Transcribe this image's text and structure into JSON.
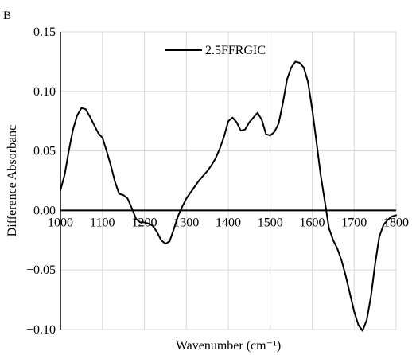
{
  "panel_label": "B",
  "chart_data": {
    "type": "line",
    "title": "",
    "panel_label": "B",
    "xlabel": "Wavenumber (cm⁻¹)",
    "ylabel": "Difference Absorbanc",
    "xlim": [
      1000,
      1800
    ],
    "ylim": [
      -0.1,
      0.15
    ],
    "x_ticks": [
      1000,
      1100,
      1200,
      1300,
      1400,
      1500,
      1600,
      1700,
      1800
    ],
    "x_tick_labels": [
      "1000",
      "1100",
      "1200",
      "1300",
      "1400",
      "1500",
      "1600",
      "1700",
      "1800"
    ],
    "y_ticks": [
      -0.1,
      -0.05,
      0.0,
      0.05,
      0.1,
      0.15
    ],
    "y_tick_labels": [
      "−0.10",
      "−0.05",
      "0.00",
      "0.05",
      "0.10",
      "0.15"
    ],
    "grid": true,
    "legend_position": "top-center",
    "colors": {
      "line": "#000000",
      "grid": "#d9d9d9"
    },
    "series": [
      {
        "name": "2.5FFRGIC",
        "x": [
          1000,
          1010,
          1020,
          1030,
          1040,
          1050,
          1060,
          1070,
          1080,
          1090,
          1100,
          1110,
          1120,
          1130,
          1140,
          1150,
          1160,
          1170,
          1180,
          1190,
          1200,
          1210,
          1220,
          1230,
          1240,
          1250,
          1260,
          1270,
          1280,
          1290,
          1300,
          1310,
          1320,
          1330,
          1340,
          1350,
          1360,
          1370,
          1380,
          1390,
          1400,
          1410,
          1420,
          1430,
          1440,
          1450,
          1460,
          1470,
          1480,
          1490,
          1500,
          1510,
          1520,
          1530,
          1540,
          1550,
          1560,
          1570,
          1580,
          1590,
          1600,
          1610,
          1620,
          1630,
          1640,
          1650,
          1660,
          1670,
          1680,
          1690,
          1700,
          1710,
          1720,
          1730,
          1740,
          1750,
          1760,
          1770,
          1780,
          1790,
          1800
        ],
        "y": [
          0.017,
          0.03,
          0.05,
          0.068,
          0.08,
          0.086,
          0.085,
          0.079,
          0.072,
          0.065,
          0.061,
          0.05,
          0.038,
          0.024,
          0.014,
          0.013,
          0.01,
          0.002,
          -0.007,
          -0.01,
          -0.01,
          -0.011,
          -0.013,
          -0.018,
          -0.025,
          -0.028,
          -0.026,
          -0.016,
          -0.005,
          0.003,
          0.01,
          0.015,
          0.02,
          0.025,
          0.029,
          0.033,
          0.038,
          0.044,
          0.052,
          0.062,
          0.075,
          0.078,
          0.074,
          0.067,
          0.068,
          0.074,
          0.078,
          0.082,
          0.076,
          0.064,
          0.063,
          0.066,
          0.073,
          0.09,
          0.11,
          0.12,
          0.125,
          0.124,
          0.12,
          0.108,
          0.085,
          0.058,
          0.03,
          0.008,
          -0.015,
          -0.025,
          -0.032,
          -0.042,
          -0.055,
          -0.07,
          -0.085,
          -0.096,
          -0.101,
          -0.092,
          -0.072,
          -0.045,
          -0.022,
          -0.012,
          -0.008,
          -0.005,
          -0.004
        ]
      }
    ]
  }
}
